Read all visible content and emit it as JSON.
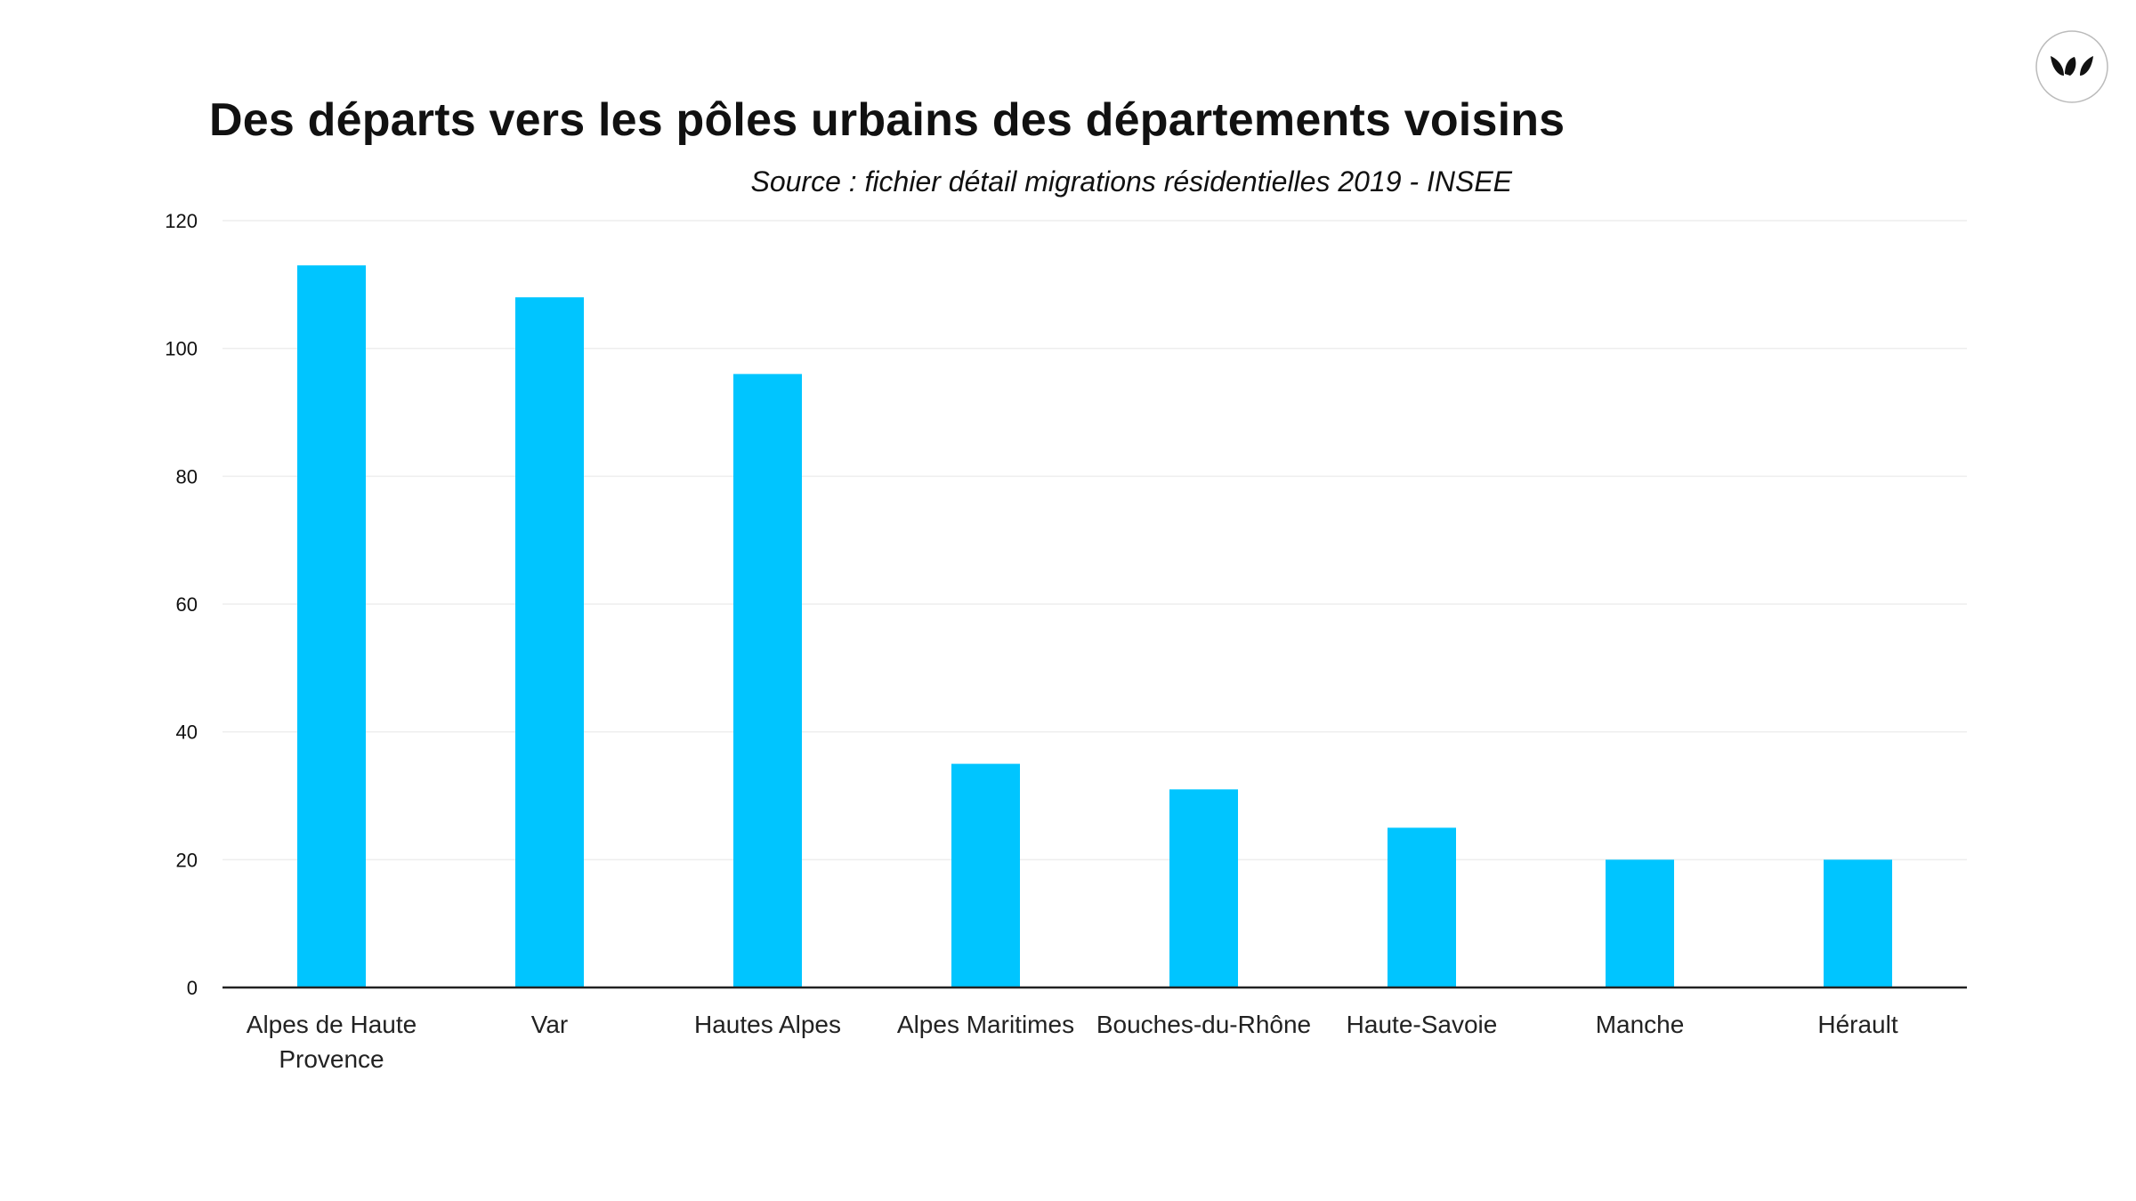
{
  "title": "Des départs vers les pôles urbains des départements voisins",
  "subtitle": "Source : fichier détail migrations résidentielles 2019 - INSEE",
  "logo_icon": "leaves-logo-icon",
  "colors": {
    "bar": "#00c5ff",
    "gridline": "#eeeeee",
    "axis": "#222222",
    "text": "#111111"
  },
  "chart_data": {
    "type": "bar",
    "title": "Des départs vers les pôles urbains des départements voisins",
    "subtitle": "Source : fichier détail migrations résidentielles 2019 - INSEE",
    "categories": [
      [
        "Alpes de Haute",
        "Provence"
      ],
      [
        "Var"
      ],
      [
        "Hautes Alpes"
      ],
      [
        "Alpes Maritimes"
      ],
      [
        "Bouches-du-Rhône"
      ],
      [
        "Haute-Savoie"
      ],
      [
        "Manche"
      ],
      [
        "Hérault"
      ]
    ],
    "values": [
      113,
      108,
      96,
      35,
      31,
      25,
      20,
      20
    ],
    "xlabel": "",
    "ylabel": "",
    "ylim": [
      0,
      120
    ],
    "yticks": [
      0,
      20,
      40,
      60,
      80,
      100,
      120
    ],
    "grid": true,
    "legend": "none"
  }
}
